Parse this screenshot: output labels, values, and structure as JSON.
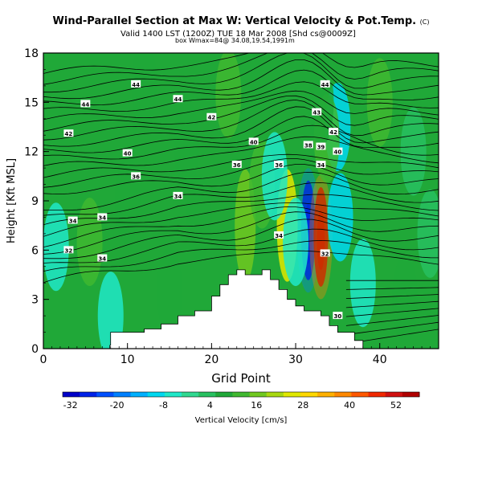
{
  "chart_data": {
    "type": "heatmap",
    "title": "Wind-Parallel Section at Max W: Vertical Velocity & Pot.Temp.",
    "title_mark": "(C)",
    "subtitle": "Valid 1400 LST (1200Z) TUE 18 Mar 2008 [Shd cs@0009Z]",
    "subtitle2": "box Wmax=84@ 34.08,19.54,1991m",
    "xlabel": "Grid Point",
    "ylabel": "Height [Kft MSL]",
    "xlim": [
      0,
      47
    ],
    "ylim": [
      0,
      18
    ],
    "x_ticks": [
      "0",
      "10",
      "20",
      "30",
      "40"
    ],
    "y_ticks": [
      "0",
      "3",
      "6",
      "9",
      "12",
      "15",
      "18"
    ],
    "colorbar": {
      "label": "Vertical Velocity [cm/s]",
      "ticks": [
        "-32",
        "-20",
        "-8",
        "4",
        "16",
        "28",
        "40",
        "52"
      ],
      "range": [
        -34,
        58
      ],
      "colors": [
        "#0000c8",
        "#0022e8",
        "#0050ff",
        "#0080ff",
        "#00b0ff",
        "#00d8f0",
        "#20e8c8",
        "#30d890",
        "#28c060",
        "#20a838",
        "#40b830",
        "#70c820",
        "#a8d810",
        "#e0e800",
        "#ffd800",
        "#ffb000",
        "#ff8800",
        "#ff5800",
        "#f02800",
        "#d01010",
        "#b00000"
      ]
    },
    "contour_labels": [
      "44",
      "44",
      "44",
      "44",
      "42",
      "42",
      "43",
      "42",
      "40",
      "40",
      "38",
      "39",
      "40",
      "36",
      "36",
      "34",
      "34",
      "34",
      "36",
      "34",
      "34",
      "32",
      "34",
      "32",
      "30"
    ],
    "terrain": [
      [
        0,
        0
      ],
      [
        7.9,
        0
      ],
      [
        7.9,
        0.2
      ],
      [
        8,
        0.2
      ],
      [
        8,
        1
      ],
      [
        10,
        1
      ],
      [
        12,
        1
      ],
      [
        12,
        1.2
      ],
      [
        14,
        1.2
      ],
      [
        14,
        1.5
      ],
      [
        16,
        1.5
      ],
      [
        16,
        2
      ],
      [
        18,
        2
      ],
      [
        18,
        2.3
      ],
      [
        20,
        2.3
      ],
      [
        20,
        3.2
      ],
      [
        21,
        3.2
      ],
      [
        21,
        3.9
      ],
      [
        22,
        3.9
      ],
      [
        22,
        4.5
      ],
      [
        23,
        4.5
      ],
      [
        23,
        4.8
      ],
      [
        24,
        4.8
      ],
      [
        24,
        4.5
      ],
      [
        26,
        4.5
      ],
      [
        26,
        4.8
      ],
      [
        27,
        4.8
      ],
      [
        27,
        4.2
      ],
      [
        28,
        4.2
      ],
      [
        28,
        3.6
      ],
      [
        29,
        3.6
      ],
      [
        29,
        3
      ],
      [
        30,
        3
      ],
      [
        30,
        2.6
      ],
      [
        31,
        2.6
      ],
      [
        31,
        2.3
      ],
      [
        33,
        2.3
      ],
      [
        33,
        2
      ],
      [
        34,
        2
      ],
      [
        34,
        1.4
      ],
      [
        35,
        1.4
      ],
      [
        35,
        1
      ],
      [
        37,
        1
      ],
      [
        37,
        0.5
      ],
      [
        38,
        0.5
      ],
      [
        38,
        0
      ],
      [
        47,
        0
      ]
    ],
    "cells": [
      {
        "x": 31.5,
        "y": 7.2,
        "value": -32
      },
      {
        "x": 33.0,
        "y": 6.8,
        "value": 58
      },
      {
        "x": 29.0,
        "y": 7.5,
        "value": 24
      },
      {
        "x": 24.0,
        "y": 7.5,
        "value": 18
      },
      {
        "x": 35.3,
        "y": 8.0,
        "value": -8
      },
      {
        "x": 35.0,
        "y": 13.5,
        "value": -8
      },
      {
        "x": 33.7,
        "y": 12.8,
        "value": 12
      },
      {
        "x": 30.0,
        "y": 6.5,
        "value": -6
      },
      {
        "x": 26.0,
        "y": 10.0,
        "value": 12
      },
      {
        "x": 1.5,
        "y": 6.2,
        "value": -6
      },
      {
        "x": 5.5,
        "y": 6.5,
        "value": 12
      },
      {
        "x": 8.0,
        "y": 2.0,
        "value": -5
      },
      {
        "x": 38.0,
        "y": 4.0,
        "value": -5
      },
      {
        "x": 40.0,
        "y": 15.0,
        "value": 10
      },
      {
        "x": 22.0,
        "y": 15.5,
        "value": 10
      },
      {
        "x": 17.0,
        "y": 12.5,
        "value": 9
      },
      {
        "x": 12.0,
        "y": 16.0,
        "value": 8
      },
      {
        "x": 18.5,
        "y": 8.0,
        "value": 8
      },
      {
        "x": 43.0,
        "y": 3.0,
        "value": 7
      },
      {
        "x": 15.0,
        "y": 3.5,
        "value": 6
      },
      {
        "x": 27.5,
        "y": 10.5,
        "value": -4
      },
      {
        "x": 33.0,
        "y": 15.0,
        "value": 6
      },
      {
        "x": 44.0,
        "y": 12.0,
        "value": 3
      },
      {
        "x": 10.0,
        "y": 9.0,
        "value": 7
      },
      {
        "x": 46.0,
        "y": 7.0,
        "value": 5
      }
    ]
  }
}
